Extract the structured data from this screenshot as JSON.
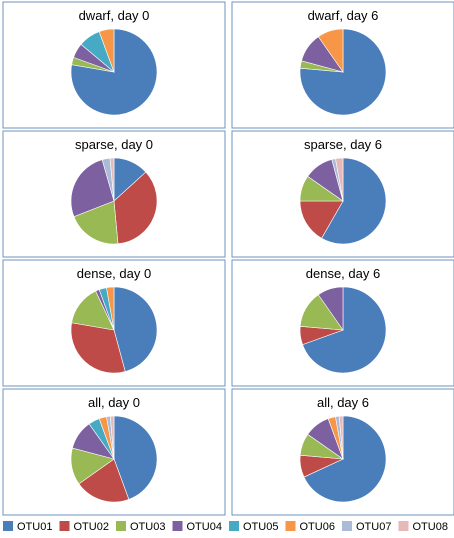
{
  "chart_data": {
    "type": "pie",
    "series_names": [
      "OTU01",
      "OTU02",
      "OTU03",
      "OTU04",
      "OTU05",
      "OTU06",
      "OTU07",
      "OTU08"
    ],
    "colors": [
      "#4a7ebb",
      "#be4b48",
      "#98b954",
      "#7d60a0",
      "#46aac5",
      "#f79646",
      "#aabad7",
      "#e6b9b8"
    ],
    "grid": "4 rows x 2 columns",
    "panels": [
      {
        "title": "dwarf, day 0",
        "values": [
          0.778,
          0.0,
          0.028,
          0.056,
          0.083,
          0.056,
          0.0,
          0.0
        ]
      },
      {
        "title": "dwarf, day 6",
        "values": [
          0.764,
          0.0,
          0.028,
          0.111,
          0.0,
          0.097,
          0.0,
          0.0
        ]
      },
      {
        "title": "sparse, day 0",
        "values": [
          0.125,
          0.333,
          0.194,
          0.25,
          0.0,
          0.0,
          0.028,
          0.014
        ]
      },
      {
        "title": "sparse, day 6",
        "values": [
          0.583,
          0.167,
          0.097,
          0.111,
          0.0,
          0.0,
          0.014,
          0.028
        ]
      },
      {
        "title": "dense, day 0",
        "values": [
          0.458,
          0.319,
          0.153,
          0.014,
          0.028,
          0.028,
          0.0,
          0.0
        ]
      },
      {
        "title": "dense, day 6",
        "values": [
          0.694,
          0.069,
          0.139,
          0.097,
          0.0,
          0.0,
          0.0,
          0.0
        ]
      },
      {
        "title": "all, day 0",
        "values": [
          0.444,
          0.208,
          0.139,
          0.111,
          0.042,
          0.028,
          0.014,
          0.014
        ]
      },
      {
        "title": "all, day 6",
        "values": [
          0.681,
          0.083,
          0.083,
          0.097,
          0.0,
          0.028,
          0.014,
          0.014
        ]
      }
    ]
  }
}
